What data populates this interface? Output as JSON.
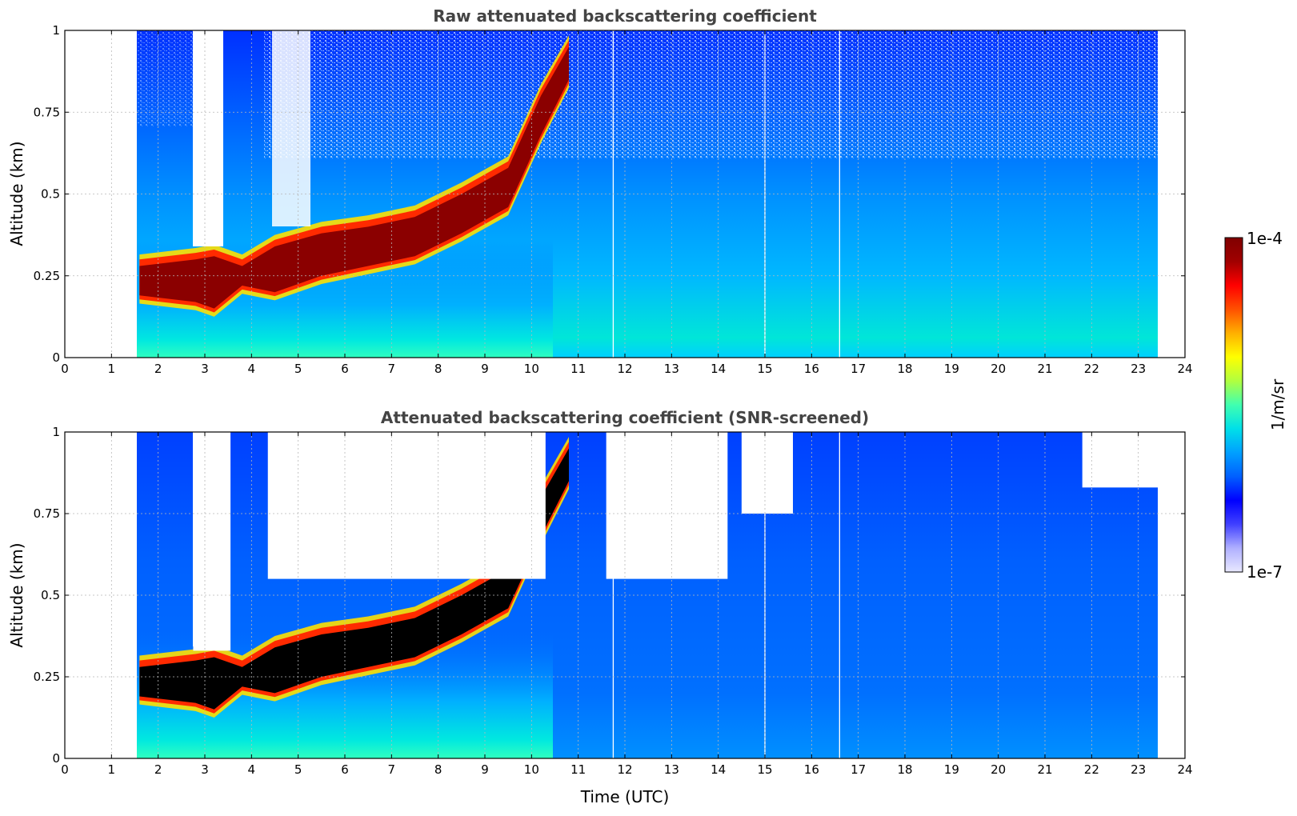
{
  "colorbar": {
    "max_label": "1e-4",
    "min_label": "1e-7",
    "unit_label": "1/m/sr",
    "colors": [
      "#e8e8ff",
      "#b0b0ff",
      "#4040ff",
      "#0000ff",
      "#0060ff",
      "#00a0ff",
      "#00e0e8",
      "#40ffb0",
      "#b0ff40",
      "#ffff00",
      "#ffb000",
      "#ff5000",
      "#ff0000",
      "#a00000",
      "#800000"
    ]
  },
  "chart_data": [
    {
      "type": "heatmap",
      "title": "Raw attenuated backscattering coefficient",
      "xlabel": "",
      "ylabel": "Altitude (km)",
      "xlim": [
        0,
        24
      ],
      "ylim": [
        0,
        1
      ],
      "xticks": [
        "0",
        "1",
        "2",
        "3",
        "4",
        "5",
        "6",
        "7",
        "8",
        "9",
        "10",
        "11",
        "12",
        "13",
        "14",
        "15",
        "16",
        "17",
        "18",
        "19",
        "20",
        "21",
        "22",
        "23",
        "24"
      ],
      "yticks": [
        "0",
        "0.25",
        "0.5",
        "0.75",
        "1"
      ],
      "ytick_values": [
        0,
        0.25,
        0.5,
        0.75,
        1
      ],
      "grid": true,
      "data_time_range": [
        1.55,
        23.65
      ],
      "fog_gap_interval": [
        2.95,
        3.45
      ],
      "layer_top_altitude": [
        {
          "time": 1.6,
          "alt": 0.28
        },
        {
          "time": 2.8,
          "alt": 0.3
        },
        {
          "time": 3.2,
          "alt": 0.31
        },
        {
          "time": 3.8,
          "alt": 0.28
        },
        {
          "time": 4.5,
          "alt": 0.34
        },
        {
          "time": 5.5,
          "alt": 0.38
        },
        {
          "time": 6.5,
          "alt": 0.4
        },
        {
          "time": 7.5,
          "alt": 0.43
        },
        {
          "time": 8.5,
          "alt": 0.5
        },
        {
          "time": 9.5,
          "alt": 0.58
        },
        {
          "time": 10.2,
          "alt": 0.8
        },
        {
          "time": 10.8,
          "alt": 0.95
        }
      ],
      "layer_bottom_altitude": [
        {
          "time": 1.6,
          "alt": 0.19
        },
        {
          "time": 2.8,
          "alt": 0.17
        },
        {
          "time": 3.2,
          "alt": 0.15
        },
        {
          "time": 3.8,
          "alt": 0.22
        },
        {
          "time": 4.5,
          "alt": 0.2
        },
        {
          "time": 5.5,
          "alt": 0.25
        },
        {
          "time": 6.5,
          "alt": 0.28
        },
        {
          "time": 7.5,
          "alt": 0.31
        },
        {
          "time": 8.5,
          "alt": 0.38
        },
        {
          "time": 9.5,
          "alt": 0.46
        },
        {
          "time": 10.2,
          "alt": 0.68
        },
        {
          "time": 10.8,
          "alt": 0.85
        }
      ],
      "missing_profile_times": [
        11.75,
        15.0,
        16.6
      ]
    },
    {
      "type": "heatmap",
      "title": "Attenuated backscattering coefficient (SNR-screened)",
      "xlabel": "Time (UTC)",
      "ylabel": "Altitude (km)",
      "xlim": [
        0,
        24
      ],
      "ylim": [
        0,
        1
      ],
      "xticks": [
        "0",
        "1",
        "2",
        "3",
        "4",
        "5",
        "6",
        "7",
        "8",
        "9",
        "10",
        "11",
        "12",
        "13",
        "14",
        "15",
        "16",
        "17",
        "18",
        "19",
        "20",
        "21",
        "22",
        "23",
        "24"
      ],
      "yticks": [
        "0",
        "0.25",
        "0.5",
        "0.75",
        "1"
      ],
      "ytick_values": [
        0,
        0.25,
        0.5,
        0.75,
        1
      ],
      "grid": true,
      "data_time_range": [
        1.55,
        23.65
      ],
      "fog_gap_interval": [
        2.95,
        3.45
      ],
      "screened_regions": [
        {
          "time_start": 2.75,
          "time_end": 3.55,
          "alt_min": 0.33,
          "alt_max": 1.0
        },
        {
          "time_start": 4.35,
          "time_end": 10.3,
          "alt_min": 0.55,
          "alt_max": 1.0
        },
        {
          "time_start": 11.6,
          "time_end": 14.2,
          "alt_min": 0.55,
          "alt_max": 1.0
        },
        {
          "time_start": 14.5,
          "time_end": 15.6,
          "alt_min": 0.75,
          "alt_max": 1.0
        },
        {
          "time_start": 21.8,
          "time_end": 23.5,
          "alt_min": 0.83,
          "alt_max": 1.0
        }
      ],
      "missing_profile_times": [
        11.75,
        15.0,
        16.6
      ]
    }
  ]
}
